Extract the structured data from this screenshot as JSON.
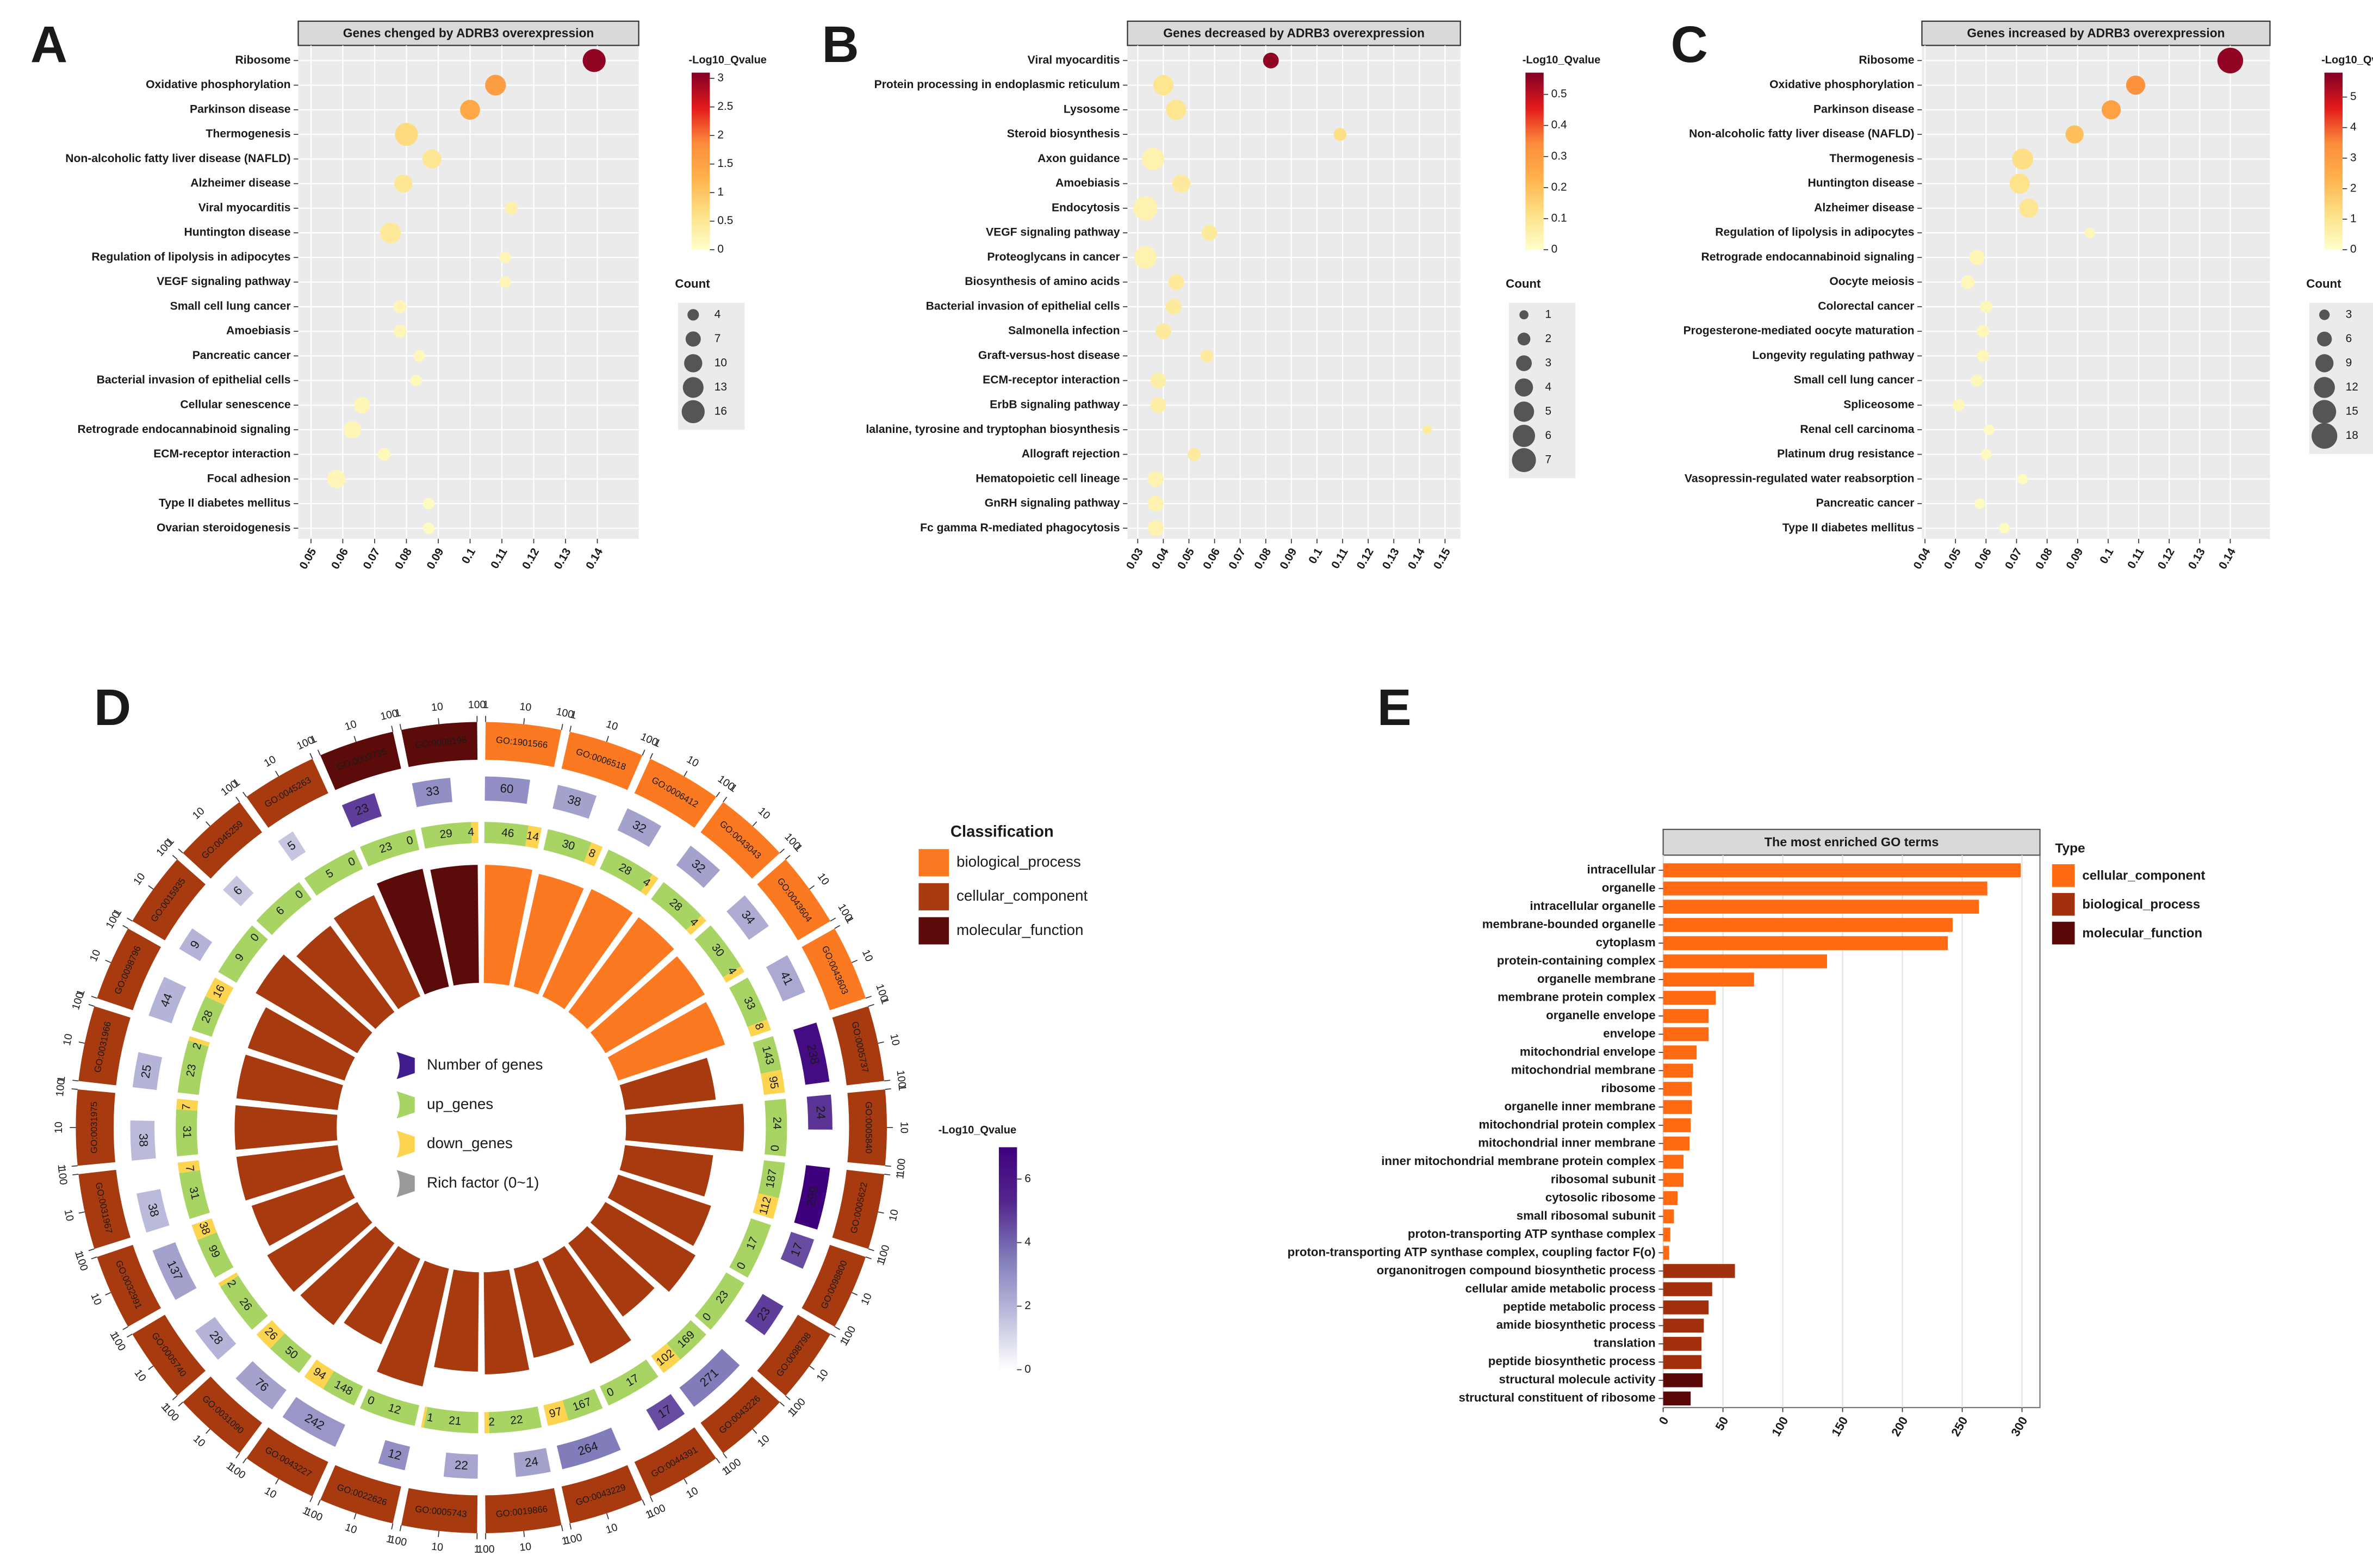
{
  "chart_data": [
    {
      "type": "bubble",
      "panel": "A",
      "title": "Genes chenged by ADRB3 overexpression",
      "colorbar_title": "-Log10_Qvalue",
      "size_title": "Count",
      "categories": [
        "Ribosome",
        "Oxidative phosphorylation",
        "Parkinson disease",
        "Thermogenesis",
        "Non-alcoholic fatty liver disease (NAFLD)",
        "Alzheimer disease",
        "Viral myocarditis",
        "Huntington disease",
        "Regulation of lipolysis in adipocytes",
        "VEGF signaling pathway",
        "Small cell lung cancer",
        "Amoebiasis",
        "Pancreatic cancer",
        "Bacterial invasion of epithelial cells",
        "Cellular senescence",
        "Retrograde endocannabinoid signaling",
        "ECM-receptor interaction",
        "Focal adhesion",
        "Type II diabetes mellitus",
        "Ovarian steroidogenesis"
      ],
      "values": [
        0.139,
        0.108,
        0.1,
        0.08,
        0.088,
        0.079,
        0.113,
        0.075,
        0.111,
        0.111,
        0.078,
        0.078,
        0.084,
        0.083,
        0.066,
        0.063,
        0.073,
        0.058,
        0.087,
        0.087
      ],
      "counts": [
        16,
        13,
        12,
        16,
        11,
        10,
        5,
        13,
        4,
        4,
        5,
        5,
        4,
        4,
        8,
        9,
        5,
        10,
        4,
        4
      ],
      "qvalues": [
        3.0,
        1.6,
        1.4,
        0.7,
        0.5,
        0.5,
        0.3,
        0.45,
        0.2,
        0.2,
        0.2,
        0.2,
        0.15,
        0.15,
        0.2,
        0.2,
        0.15,
        0.2,
        0.1,
        0.1
      ],
      "xlim": [
        0.046,
        0.153
      ],
      "xticks": [
        0.05,
        0.06,
        0.07,
        0.08,
        0.09,
        0.1,
        0.11,
        0.12,
        0.13,
        0.14
      ],
      "clim": [
        0,
        3.1
      ],
      "cticks": [
        0,
        0.5,
        1,
        1.5,
        2,
        2.5,
        3
      ],
      "size_legend": [
        4,
        7,
        10,
        13,
        16
      ],
      "colormap": [
        "#ffffcc",
        "#fee187",
        "#feb24c",
        "#fd8d3c",
        "#e31a1c",
        "#800026"
      ]
    },
    {
      "type": "bubble",
      "panel": "B",
      "title": "Genes decreased by ADRB3 overexpression",
      "colorbar_title": "-Log10_Qvalue",
      "size_title": "Count",
      "categories": [
        "Viral myocarditis",
        "Protein processing in endoplasmic reticulum",
        "Lysosome",
        "Steroid biosynthesis",
        "Axon guidance",
        "Amoebiasis",
        "Endocytosis",
        "VEGF signaling pathway",
        "Proteoglycans in cancer",
        "Biosynthesis of amino acids",
        "Bacterial invasion of epithelial cells",
        "Salmonella infection",
        "Graft-versus-host disease",
        "ECM-receptor interaction",
        "ErbB signaling pathway",
        "lalanine, tyrosine and tryptophan biosynthesis",
        "Allograft rejection",
        "Hematopoietic cell lineage",
        "GnRH signaling pathway",
        "Fc gamma R-mediated phagocytosis"
      ],
      "values": [
        0.082,
        0.04,
        0.045,
        0.109,
        0.036,
        0.047,
        0.033,
        0.058,
        0.033,
        0.045,
        0.044,
        0.04,
        0.057,
        0.038,
        0.038,
        0.143,
        0.052,
        0.037,
        0.037,
        0.037
      ],
      "counts": [
        3,
        5,
        5,
        2,
        6,
        4,
        7,
        3,
        6,
        3,
        3,
        3,
        2,
        3,
        3,
        1,
        2,
        3,
        3,
        3
      ],
      "qvalues": [
        0.55,
        0.1,
        0.1,
        0.12,
        0.05,
        0.08,
        0.05,
        0.08,
        0.05,
        0.08,
        0.08,
        0.08,
        0.08,
        0.06,
        0.06,
        0.08,
        0.08,
        0.05,
        0.05,
        0.05
      ],
      "xlim": [
        0.026,
        0.156
      ],
      "xticks": [
        0.03,
        0.04,
        0.05,
        0.06,
        0.07,
        0.08,
        0.09,
        0.1,
        0.11,
        0.12,
        0.13,
        0.14,
        0.15
      ],
      "clim": [
        0,
        0.57
      ],
      "cticks": [
        0,
        0.1,
        0.2,
        0.3,
        0.4,
        0.5
      ],
      "size_legend": [
        1,
        2,
        3,
        4,
        5,
        6,
        7
      ],
      "colormap": [
        "#ffffcc",
        "#fee187",
        "#feb24c",
        "#fd8d3c",
        "#e31a1c",
        "#800026"
      ]
    },
    {
      "type": "bubble",
      "panel": "C",
      "title": "Genes increased by ADRB3 overexpression",
      "colorbar_title": "-Log10_Qvalue",
      "size_title": "Count",
      "categories": [
        "Ribosome",
        "Oxidative phosphorylation",
        "Parkinson disease",
        "Non-alcoholic fatty liver disease (NAFLD)",
        "Thermogenesis",
        "Huntington disease",
        "Alzheimer disease",
        "Regulation of lipolysis in adipocytes",
        "Retrograde endocannabinoid signaling",
        "Oocyte meiosis",
        "Colorectal cancer",
        "Progesterone-mediated oocyte maturation",
        "Longevity regulating pathway",
        "Small cell lung cancer",
        "Spliceosome",
        "Renal cell carcinoma",
        "Platinum drug resistance",
        "Vasopressin-regulated water reabsorption",
        "Pancreatic cancer",
        "Type II diabetes mellitus"
      ],
      "values": [
        0.14,
        0.109,
        0.101,
        0.089,
        0.072,
        0.071,
        0.074,
        0.094,
        0.057,
        0.054,
        0.06,
        0.059,
        0.059,
        0.057,
        0.051,
        0.061,
        0.06,
        0.072,
        0.058,
        0.066
      ],
      "counts": [
        18,
        10,
        10,
        9,
        12,
        11,
        10,
        3,
        6,
        5,
        4,
        4,
        4,
        4,
        4,
        3,
        3,
        3,
        3,
        3
      ],
      "qvalues": [
        5.6,
        3.3,
        2.9,
        2.0,
        1.2,
        1.1,
        1.0,
        0.3,
        0.4,
        0.3,
        0.3,
        0.3,
        0.3,
        0.3,
        0.3,
        0.2,
        0.2,
        0.2,
        0.2,
        0.2
      ],
      "xlim": [
        0.039,
        0.153
      ],
      "xticks": [
        0.04,
        0.05,
        0.06,
        0.07,
        0.08,
        0.09,
        0.1,
        0.11,
        0.12,
        0.13,
        0.14
      ],
      "clim": [
        0,
        5.8
      ],
      "cticks": [
        0,
        1,
        2,
        3,
        4,
        5
      ],
      "size_legend": [
        3,
        6,
        9,
        12,
        15,
        18
      ],
      "colormap": [
        "#ffffcc",
        "#fee187",
        "#feb24c",
        "#fd8d3c",
        "#e31a1c",
        "#800026"
      ]
    },
    {
      "type": "circos",
      "panel": "D",
      "legend_title": "Classification",
      "colorbar_title": "-Log10_Qvalue",
      "classes": [
        {
          "name": "biological_process",
          "color": "#fb7a21"
        },
        {
          "name": "cellular_component",
          "color": "#a83a10"
        },
        {
          "name": "molecular_function",
          "color": "#5c0b0b"
        }
      ],
      "inner_legend": [
        {
          "label": "Number of genes",
          "color": "#3f1d8c"
        },
        {
          "label": "up_genes",
          "color": "#a8d464"
        },
        {
          "label": "down_genes",
          "color": "#fdd44f"
        },
        {
          "label": "Rich factor (0~1)",
          "color": "#9a9a9a"
        }
      ],
      "scale_ticks": [
        1,
        10,
        100
      ],
      "clim": [
        0,
        7
      ],
      "cticks": [
        0,
        2,
        4,
        6
      ],
      "colormap": [
        "#ffffff",
        "#bcbddc",
        "#807dba",
        "#54278f",
        "#3f007d"
      ],
      "terms": [
        {
          "go": "GO:1901566",
          "class": "biological_process",
          "genes": 60,
          "up": 46,
          "down": 14,
          "qvalue": 3.0,
          "rich": 0.9
        },
        {
          "go": "GO:0006518",
          "class": "biological_process",
          "genes": 38,
          "up": 30,
          "down": 8,
          "qvalue": 2.5,
          "rich": 0.88
        },
        {
          "go": "GO:0006412",
          "class": "biological_process",
          "genes": 32,
          "up": 28,
          "down": 4,
          "qvalue": 2.5,
          "rich": 0.9
        },
        {
          "go": "GO:0043043",
          "class": "biological_process",
          "genes": 32,
          "up": 28,
          "down": 4,
          "qvalue": 2.5,
          "rich": 0.9
        },
        {
          "go": "GO:0043604",
          "class": "biological_process",
          "genes": 34,
          "up": 30,
          "down": 4,
          "qvalue": 2.2,
          "rich": 0.88
        },
        {
          "go": "GO:0043603",
          "class": "biological_process",
          "genes": 41,
          "up": 33,
          "down": 8,
          "qvalue": 2.3,
          "rich": 0.86
        },
        {
          "go": "GO:0005737",
          "class": "cellular_component",
          "genes": 238,
          "up": 143,
          "down": 95,
          "qvalue": 6.5,
          "rich": 0.7
        },
        {
          "go": "GO:0005840",
          "class": "cellular_component",
          "genes": 24,
          "up": 24,
          "down": 0,
          "qvalue": 5.0,
          "rich": 0.9
        },
        {
          "go": "GO:0005622",
          "class": "cellular_component",
          "genes": 299,
          "up": 187,
          "down": 112,
          "qvalue": 7.0,
          "rich": 0.68
        },
        {
          "go": "GO:0098800",
          "class": "cellular_component",
          "genes": 17,
          "up": 17,
          "down": 0,
          "qvalue": 4.5,
          "rich": 0.75
        },
        {
          "go": "GO:0098798",
          "class": "cellular_component",
          "genes": 23,
          "up": 23,
          "down": 0,
          "qvalue": 4.8,
          "rich": 0.8
        },
        {
          "go": "GO:0043226",
          "class": "cellular_component",
          "genes": 271,
          "up": 169,
          "down": 102,
          "qvalue": 3.5,
          "rich": 0.7
        },
        {
          "go": "GO:0044391",
          "class": "cellular_component",
          "genes": 17,
          "up": 17,
          "down": 0,
          "qvalue": 4.5,
          "rich": 0.88
        },
        {
          "go": "GO:0043229",
          "class": "cellular_component",
          "genes": 264,
          "up": 167,
          "down": 97,
          "qvalue": 3.5,
          "rich": 0.7
        },
        {
          "go": "GO:0019866",
          "class": "cellular_component",
          "genes": 24,
          "up": 22,
          "down": 2,
          "qvalue": 2.5,
          "rich": 0.78
        },
        {
          "go": "GO:0005743",
          "class": "cellular_component",
          "genes": 22,
          "up": 21,
          "down": 1,
          "qvalue": 2.4,
          "rich": 0.76
        },
        {
          "go": "GO:0022626",
          "class": "cellular_component",
          "genes": 12,
          "up": 12,
          "down": 0,
          "qvalue": 3.0,
          "rich": 0.92
        },
        {
          "go": "GO:0043227",
          "class": "cellular_component",
          "genes": 242,
          "up": 148,
          "down": 94,
          "qvalue": 2.8,
          "rich": 0.72
        },
        {
          "go": "GO:0031090",
          "class": "cellular_component",
          "genes": 76,
          "up": 50,
          "down": 26,
          "qvalue": 2.5,
          "rich": 0.78
        },
        {
          "go": "GO:0005740",
          "class": "cellular_component",
          "genes": 28,
          "up": 26,
          "down": 2,
          "qvalue": 2.0,
          "rich": 0.8
        },
        {
          "go": "GO:0032991",
          "class": "cellular_component",
          "genes": 137,
          "up": 99,
          "down": 38,
          "qvalue": 2.5,
          "rich": 0.75
        },
        {
          "go": "GO:0031967",
          "class": "cellular_component",
          "genes": 38,
          "up": 31,
          "down": 7,
          "qvalue": 1.8,
          "rich": 0.78
        },
        {
          "go": "GO:0031975",
          "class": "cellular_component",
          "genes": 38,
          "up": 31,
          "down": 7,
          "qvalue": 1.8,
          "rich": 0.78
        },
        {
          "go": "GO:0031966",
          "class": "cellular_component",
          "genes": 25,
          "up": 23,
          "down": 2,
          "qvalue": 2.0,
          "rich": 0.78
        },
        {
          "go": "GO:0098796",
          "class": "cellular_component",
          "genes": 44,
          "up": 28,
          "down": 16,
          "qvalue": 2.0,
          "rich": 0.78
        },
        {
          "go": "GO:0015935",
          "class": "cellular_component",
          "genes": 9,
          "up": 9,
          "down": 0,
          "qvalue": 2.0,
          "rich": 0.9
        },
        {
          "go": "GO:0045259",
          "class": "cellular_component",
          "genes": 6,
          "up": 6,
          "down": 0,
          "qvalue": 1.5,
          "rich": 0.82
        },
        {
          "go": "GO:0045263",
          "class": "cellular_component",
          "genes": 5,
          "up": 5,
          "down": 0,
          "qvalue": 1.5,
          "rich": 0.85
        },
        {
          "go": "GO:0003735",
          "class": "molecular_function",
          "genes": 23,
          "up": 23,
          "down": 0,
          "qvalue": 4.8,
          "rich": 0.92
        },
        {
          "go": "GO:0005198",
          "class": "molecular_function",
          "genes": 33,
          "up": 29,
          "down": 4,
          "qvalue": 3.0,
          "rich": 0.9
        }
      ]
    },
    {
      "type": "hbar",
      "panel": "E",
      "title": "The most enriched GO terms",
      "legend_title": "Type",
      "categories": [
        "intracellular",
        "organelle",
        "intracellular organelle",
        "membrane-bounded organelle",
        "cytoplasm",
        "protein-containing complex",
        "organelle membrane",
        "membrane protein complex",
        "organelle envelope",
        "envelope",
        "mitochondrial envelope",
        "mitochondrial membrane",
        "ribosome",
        "organelle inner membrane",
        "mitochondrial protein complex",
        "mitochondrial inner membrane",
        "inner mitochondrial membrane protein complex",
        "ribosomal subunit",
        "cytosolic ribosome",
        "small ribosomal subunit",
        "proton-transporting ATP synthase complex",
        "proton-transporting ATP synthase complex, coupling factor F(o)",
        "organonitrogen compound biosynthetic process",
        "cellular amide metabolic process",
        "peptide metabolic process",
        "amide biosynthetic process",
        "translation",
        "peptide biosynthetic process",
        "structural molecule activity",
        "structural constituent of ribosome"
      ],
      "series": [
        {
          "name": "cellular_component",
          "color": "#ff6a13",
          "values": [
            299,
            271,
            264,
            242,
            238,
            137,
            76,
            44,
            38,
            38,
            28,
            25,
            24,
            24,
            23,
            22,
            17,
            17,
            12,
            9,
            6,
            5,
            null,
            null,
            null,
            null,
            null,
            null,
            null,
            null
          ]
        },
        {
          "name": "biological_process",
          "color": "#a3300c",
          "values": [
            null,
            null,
            null,
            null,
            null,
            null,
            null,
            null,
            null,
            null,
            null,
            null,
            null,
            null,
            null,
            null,
            null,
            null,
            null,
            null,
            null,
            null,
            60,
            41,
            38,
            34,
            32,
            32,
            null,
            null
          ]
        },
        {
          "name": "molecular_function",
          "color": "#5a0808",
          "values": [
            null,
            null,
            null,
            null,
            null,
            null,
            null,
            null,
            null,
            null,
            null,
            null,
            null,
            null,
            null,
            null,
            null,
            null,
            null,
            null,
            null,
            null,
            null,
            null,
            null,
            null,
            null,
            null,
            33,
            23
          ]
        }
      ],
      "xlim": [
        0,
        315
      ],
      "xticks": [
        0,
        50,
        100,
        150,
        200,
        250,
        300
      ],
      "grid": true
    }
  ]
}
